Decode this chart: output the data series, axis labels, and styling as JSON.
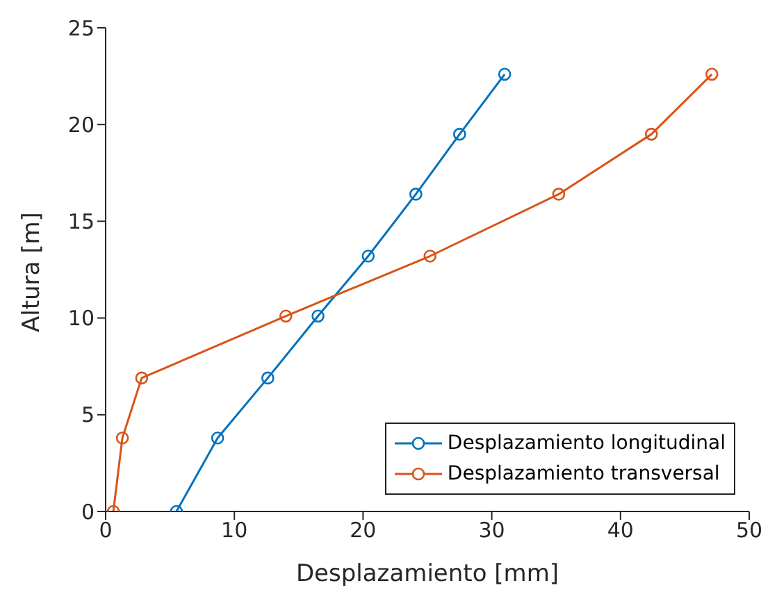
{
  "chart_data": {
    "type": "line",
    "xlabel": "Desplazamiento [mm]",
    "ylabel": "Altura [m]",
    "xlim": [
      0,
      50
    ],
    "xticks": [
      0,
      10,
      20,
      30,
      40,
      50
    ],
    "ylim": [
      0,
      25
    ],
    "yticks": [
      0,
      5,
      10,
      15,
      20,
      25
    ],
    "grid": false,
    "legend": "bottom right",
    "marker": "circle",
    "line_style": "solid",
    "series": [
      {
        "name": "Desplazamiento longitudinal",
        "color": "#0072bd",
        "x": [
          5.5,
          8.7,
          12.6,
          16.5,
          20.4,
          24.1,
          27.5,
          31.0
        ],
        "values": [
          0,
          3.8,
          6.9,
          10.1,
          13.2,
          16.4,
          19.5,
          22.6
        ]
      },
      {
        "name": "Desplazamiento transversal",
        "color": "#d95319",
        "x": [
          0.6,
          1.3,
          2.8,
          14.0,
          25.2,
          35.2,
          42.4,
          47.1
        ],
        "values": [
          0,
          3.8,
          6.9,
          10.1,
          13.2,
          16.4,
          19.5,
          22.6
        ]
      }
    ]
  }
}
